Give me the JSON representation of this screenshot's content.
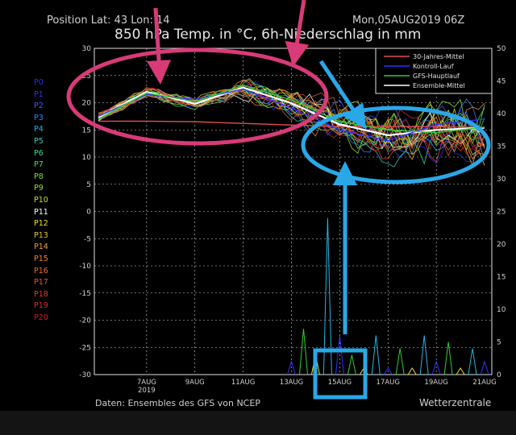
{
  "header": {
    "position": "Position   Lat: 43  Lon: 14",
    "run": "Mon,05AUG2019 06Z",
    "title": "850 hPa Temp. in °C, 6h-Niederschlag in mm"
  },
  "members": [
    {
      "label": "P0",
      "color": "#2a2aff"
    },
    {
      "label": "P1",
      "color": "#3030ff"
    },
    {
      "label": "P2",
      "color": "#3a5cff"
    },
    {
      "label": "P3",
      "color": "#2d8cff"
    },
    {
      "label": "P4",
      "color": "#22b4e8"
    },
    {
      "label": "P5",
      "color": "#2fd0c0"
    },
    {
      "label": "P6",
      "color": "#3adc8a"
    },
    {
      "label": "P7",
      "color": "#4ee05a"
    },
    {
      "label": "P8",
      "color": "#7ae03a"
    },
    {
      "label": "P9",
      "color": "#a0e030"
    },
    {
      "label": "P10",
      "color": "#c8e030"
    },
    {
      "label": "P11",
      "color": "#ffffff"
    },
    {
      "label": "P12",
      "color": "#e8e030"
    },
    {
      "label": "P13",
      "color": "#f0c030"
    },
    {
      "label": "P14",
      "color": "#f0a030"
    },
    {
      "label": "P15",
      "color": "#f08830"
    },
    {
      "label": "P16",
      "color": "#e87030"
    },
    {
      "label": "P17",
      "color": "#e05830"
    },
    {
      "label": "P18",
      "color": "#d84530"
    },
    {
      "label": "P19",
      "color": "#d03030"
    },
    {
      "label": "P20",
      "color": "#c82020"
    }
  ],
  "footer": {
    "source": "Daten: Ensembles des GFS von NCEP",
    "brand": "Wetterzentrale"
  },
  "chart_data": {
    "type": "line",
    "xlabel": "",
    "ylabel": "",
    "x_ticks": [
      "7AUG\n2019",
      "9AUG",
      "11AUG",
      "13AUG",
      "15AUG",
      "17AUG",
      "19AUG",
      "21AUG"
    ],
    "ylim": [
      -30,
      30
    ],
    "y_ticks": [
      30,
      25,
      20,
      15,
      10,
      5,
      0,
      -5,
      -10,
      -15,
      -20,
      -25,
      -30
    ],
    "y2lim": [
      0,
      50
    ],
    "y2_ticks": [
      50,
      45,
      40,
      35,
      30,
      25,
      20,
      15,
      10,
      5,
      0
    ],
    "grid": true,
    "legend_position": "top-right",
    "legend": [
      {
        "name": "30-Jahres-Mittel",
        "color": "#e05050"
      },
      {
        "name": "Kontroll-Lauf",
        "color": "#3030ff"
      },
      {
        "name": "GFS-Hauptlauf",
        "color": "#30d030"
      },
      {
        "name": "Ensemble-Mittel",
        "color": "#ffffff"
      }
    ],
    "x_days": [
      0,
      2,
      4,
      6,
      8,
      10,
      12,
      14,
      16
    ],
    "series": [
      {
        "name": "30-Jahres-Mittel",
        "color": "#e05050",
        "values": [
          16.6,
          16.6,
          16.5,
          16.2,
          15.9,
          15.6,
          15.6,
          15.6,
          15.4
        ]
      },
      {
        "name": "Ensemble-Mittel",
        "color": "#ffffff",
        "values": [
          17.3,
          22.0,
          19.8,
          22.8,
          19.9,
          16.0,
          14.0,
          15.0,
          15.4
        ]
      },
      {
        "name": "Kontroll-Lauf",
        "color": "#3030ff",
        "values": [
          17.5,
          21.5,
          20.6,
          22.5,
          19.0,
          15.0,
          13.0,
          16.0,
          17.0
        ]
      },
      {
        "name": "GFS-Hauptlauf",
        "color": "#30d030",
        "values": [
          17.0,
          21.8,
          20.2,
          23.2,
          20.5,
          16.5,
          15.0,
          14.5,
          15.5
        ]
      }
    ],
    "precipitation_mm": {
      "x_days": [
        8,
        8.5,
        9,
        9.5,
        10,
        10.5,
        11,
        11.5,
        12,
        12.5,
        13,
        13.5,
        14,
        14.5,
        15,
        15.5,
        16
      ],
      "max_values": [
        2,
        7,
        3,
        24,
        6,
        3,
        1,
        6,
        1,
        4,
        1,
        6,
        2,
        5,
        1,
        4,
        2
      ]
    }
  }
}
